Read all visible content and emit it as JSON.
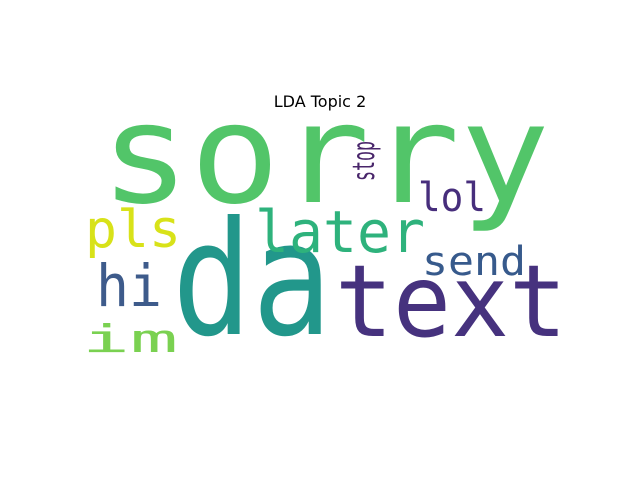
{
  "title": "LDA Topic 2",
  "words": [
    {
      "text": "sorry",
      "color": "#52c569"
    },
    {
      "text": "da",
      "color": "#22978b"
    },
    {
      "text": "text",
      "color": "#46327e"
    },
    {
      "text": "later",
      "color": "#2eb27c"
    },
    {
      "text": "pls",
      "color": "#d8e219"
    },
    {
      "text": "hi",
      "color": "#3e5b8b"
    },
    {
      "text": "lol",
      "color": "#472e7c"
    },
    {
      "text": "send",
      "color": "#375a8c"
    },
    {
      "text": "im",
      "color": "#7ad151"
    },
    {
      "text": "stop",
      "color": "#48256a"
    }
  ]
}
